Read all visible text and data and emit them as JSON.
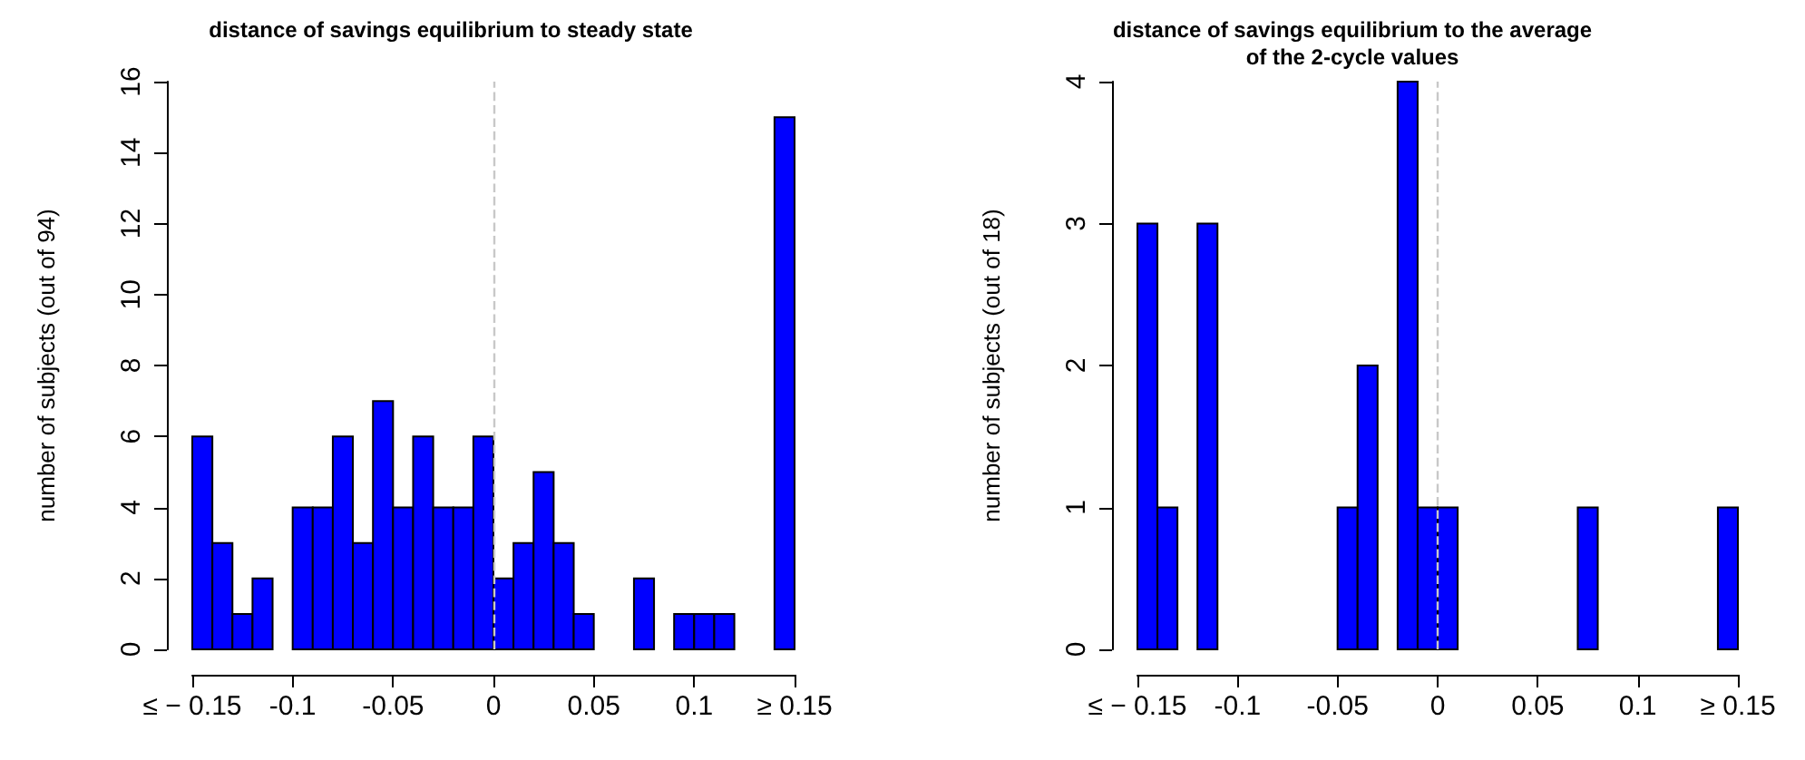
{
  "chart_data": [
    {
      "type": "histogram",
      "title": "distance of savings equilibrium to steady state",
      "ylabel": "number of subjects (out of 94)",
      "bins": [
        -0.15,
        -0.14,
        -0.13,
        -0.12,
        -0.11,
        -0.1,
        -0.09,
        -0.08,
        -0.07,
        -0.06,
        -0.05,
        -0.04,
        -0.03,
        -0.02,
        -0.01,
        0,
        0.01,
        0.02,
        0.03,
        0.04,
        0.05,
        0.06,
        0.07,
        0.08,
        0.09,
        0.1,
        0.11,
        0.12,
        0.13,
        0.14,
        0.15
      ],
      "values": [
        6,
        3,
        1,
        2,
        0,
        4,
        4,
        6,
        3,
        7,
        4,
        6,
        4,
        4,
        6,
        2,
        3,
        5,
        3,
        1,
        0,
        0,
        2,
        0,
        1,
        1,
        1,
        0,
        0,
        15
      ],
      "color": "#0000ff",
      "xlim": [
        -0.15,
        0.15
      ],
      "xticks": [
        {
          "value": -0.15,
          "label": "≤ − 0.15"
        },
        {
          "value": -0.1,
          "label": "-0.1"
        },
        {
          "value": -0.05,
          "label": "-0.05"
        },
        0,
        0.05,
        0.1,
        {
          "value": 0.15,
          "label": "≥ 0.15"
        }
      ],
      "ylim": [
        0,
        16
      ],
      "yticks": [
        0,
        2,
        4,
        6,
        8,
        10,
        12,
        14,
        16
      ],
      "ref_lines": [
        {
          "axis": "x",
          "value": 0,
          "color": "#c8c8c8",
          "line_style": "dashed"
        }
      ],
      "grid": false
    },
    {
      "type": "histogram",
      "title": "distance of savings equilibrium to the average\nof the 2-cycle values",
      "ylabel": "number of subjects (out of 18)",
      "bins": [
        -0.15,
        -0.14,
        -0.13,
        -0.12,
        -0.11,
        -0.1,
        -0.09,
        -0.08,
        -0.07,
        -0.06,
        -0.05,
        -0.04,
        -0.03,
        -0.02,
        -0.01,
        0,
        0.01,
        0.02,
        0.03,
        0.04,
        0.05,
        0.06,
        0.07,
        0.08,
        0.09,
        0.1,
        0.11,
        0.12,
        0.13,
        0.14,
        0.15
      ],
      "values": [
        3,
        1,
        0,
        3,
        0,
        0,
        0,
        0,
        0,
        0,
        1,
        2,
        0,
        4,
        1,
        1,
        0,
        0,
        0,
        0,
        0,
        0,
        1,
        0,
        0,
        0,
        0,
        0,
        0,
        1
      ],
      "color": "#0000ff",
      "xlim": [
        -0.15,
        0.15
      ],
      "xticks": [
        {
          "value": -0.15,
          "label": "≤ − 0.15"
        },
        {
          "value": -0.1,
          "label": "-0.1"
        },
        {
          "value": -0.05,
          "label": "-0.05"
        },
        0,
        0.05,
        0.1,
        {
          "value": 0.15,
          "label": "≥ 0.15"
        }
      ],
      "ylim": [
        0,
        4
      ],
      "yticks": [
        0,
        1,
        2,
        3,
        4
      ],
      "ref_lines": [
        {
          "axis": "x",
          "value": 0,
          "color": "#c8c8c8",
          "line_style": "dashed"
        }
      ],
      "grid": false
    }
  ]
}
